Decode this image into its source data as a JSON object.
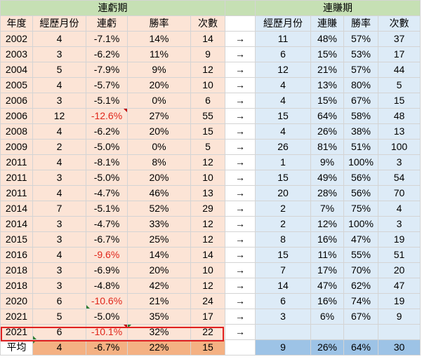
{
  "headers": {
    "loss_group": "連虧期",
    "win_group": "連賺期",
    "loss_cols": [
      "年度",
      "經歷月份",
      "連虧",
      "勝率",
      "次數"
    ],
    "win_cols": [
      "經歷月份",
      "連賺",
      "勝率",
      "次數"
    ],
    "arrow": "→"
  },
  "rows": [
    {
      "year": "2002",
      "months": "4",
      "loss": "-7.1%",
      "loss_wr": "14%",
      "loss_n": "14",
      "arrow": "→",
      "wmonths": "11",
      "gain": "48%",
      "win_wr": "57%",
      "win_n": "37"
    },
    {
      "year": "2003",
      "months": "3",
      "loss": "-6.2%",
      "loss_wr": "11%",
      "loss_n": "9",
      "arrow": "→",
      "wmonths": "6",
      "gain": "15%",
      "win_wr": "53%",
      "win_n": "17"
    },
    {
      "year": "2004",
      "months": "5",
      "loss": "-7.9%",
      "loss_wr": "9%",
      "loss_n": "12",
      "arrow": "→",
      "wmonths": "12",
      "gain": "21%",
      "win_wr": "57%",
      "win_n": "44"
    },
    {
      "year": "2005",
      "months": "4",
      "loss": "-5.7%",
      "loss_wr": "20%",
      "loss_n": "10",
      "arrow": "→",
      "wmonths": "4",
      "gain": "13%",
      "win_wr": "80%",
      "win_n": "5"
    },
    {
      "year": "2006",
      "months": "3",
      "loss": "-5.1%",
      "loss_wr": "0%",
      "loss_n": "6",
      "arrow": "→",
      "wmonths": "4",
      "gain": "15%",
      "win_wr": "67%",
      "win_n": "15"
    },
    {
      "year": "2006",
      "months": "12",
      "loss": "-12.6%",
      "loss_wr": "27%",
      "loss_n": "55",
      "arrow": "→",
      "wmonths": "15",
      "gain": "64%",
      "win_wr": "58%",
      "win_n": "48"
    },
    {
      "year": "2008",
      "months": "4",
      "loss": "-6.2%",
      "loss_wr": "20%",
      "loss_n": "15",
      "arrow": "→",
      "wmonths": "4",
      "gain": "26%",
      "win_wr": "38%",
      "win_n": "13"
    },
    {
      "year": "2009",
      "months": "2",
      "loss": "-5.0%",
      "loss_wr": "0%",
      "loss_n": "5",
      "arrow": "→",
      "wmonths": "26",
      "gain": "81%",
      "win_wr": "51%",
      "win_n": "100"
    },
    {
      "year": "2011",
      "months": "4",
      "loss": "-8.1%",
      "loss_wr": "8%",
      "loss_n": "12",
      "arrow": "→",
      "wmonths": "1",
      "gain": "9%",
      "win_wr": "100%",
      "win_n": "3"
    },
    {
      "year": "2011",
      "months": "3",
      "loss": "-5.0%",
      "loss_wr": "20%",
      "loss_n": "10",
      "arrow": "→",
      "wmonths": "15",
      "gain": "49%",
      "win_wr": "56%",
      "win_n": "54"
    },
    {
      "year": "2011",
      "months": "4",
      "loss": "-4.7%",
      "loss_wr": "46%",
      "loss_n": "13",
      "arrow": "→",
      "wmonths": "20",
      "gain": "28%",
      "win_wr": "56%",
      "win_n": "70"
    },
    {
      "year": "2014",
      "months": "7",
      "loss": "-5.1%",
      "loss_wr": "52%",
      "loss_n": "29",
      "arrow": "→",
      "wmonths": "2",
      "gain": "7%",
      "win_wr": "75%",
      "win_n": "4"
    },
    {
      "year": "2014",
      "months": "3",
      "loss": "-4.7%",
      "loss_wr": "33%",
      "loss_n": "12",
      "arrow": "→",
      "wmonths": "2",
      "gain": "12%",
      "win_wr": "100%",
      "win_n": "3"
    },
    {
      "year": "2015",
      "months": "3",
      "loss": "-6.7%",
      "loss_wr": "25%",
      "loss_n": "12",
      "arrow": "→",
      "wmonths": "8",
      "gain": "16%",
      "win_wr": "47%",
      "win_n": "19"
    },
    {
      "year": "2016",
      "months": "4",
      "loss": "-9.6%",
      "loss_wr": "14%",
      "loss_n": "14",
      "arrow": "→",
      "wmonths": "15",
      "gain": "11%",
      "win_wr": "55%",
      "win_n": "51"
    },
    {
      "year": "2018",
      "months": "3",
      "loss": "-6.9%",
      "loss_wr": "20%",
      "loss_n": "10",
      "arrow": "→",
      "wmonths": "7",
      "gain": "17%",
      "win_wr": "70%",
      "win_n": "20"
    },
    {
      "year": "2018",
      "months": "3",
      "loss": "-4.8%",
      "loss_wr": "42%",
      "loss_n": "12",
      "arrow": "→",
      "wmonths": "14",
      "gain": "47%",
      "win_wr": "62%",
      "win_n": "47"
    },
    {
      "year": "2020",
      "months": "6",
      "loss": "-10.6%",
      "loss_wr": "21%",
      "loss_n": "24",
      "arrow": "→",
      "wmonths": "6",
      "gain": "16%",
      "win_wr": "74%",
      "win_n": "19"
    },
    {
      "year": "2021",
      "months": "5",
      "loss": "-5.0%",
      "loss_wr": "35%",
      "loss_n": "17",
      "arrow": "→",
      "wmonths": "3",
      "gain": "6%",
      "win_wr": "67%",
      "win_n": "9"
    },
    {
      "year": "2021",
      "months": "6",
      "loss": "-10.1%",
      "loss_wr": "32%",
      "loss_n": "22",
      "arrow": "→",
      "wmonths": "",
      "gain": "",
      "win_wr": "",
      "win_n": ""
    }
  ],
  "average": {
    "label": "平均",
    "months": "4",
    "loss": "-6.7%",
    "loss_wr": "22%",
    "loss_n": "15",
    "wmonths": "9",
    "gain": "26%",
    "win_wr": "64%",
    "win_n": "30"
  },
  "colors": {
    "loss_fill": "#fce4d6",
    "win_fill": "#ddebf7",
    "header_fill": "#c6e0b4",
    "avg_loss_fill": "#f4b183",
    "avg_win_fill": "#9dc3e6",
    "red_text": "#e0261a",
    "highlight_border": "#e02020",
    "arrow_color": "#2e75b6"
  }
}
